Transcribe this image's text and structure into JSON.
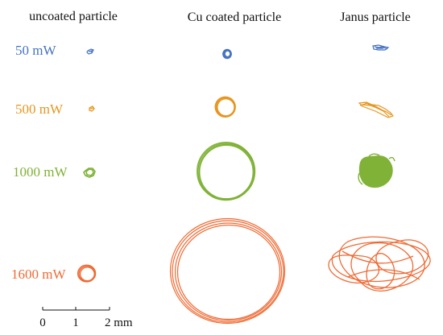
{
  "columns": [
    "uncoated particle",
    "Cu coated particle",
    "Janus particle"
  ],
  "rows": [
    {
      "label": "50 mW",
      "color": "#4472c4"
    },
    {
      "label": "500 mW",
      "color": "#e6961f"
    },
    {
      "label": "1000 mW",
      "color": "#7fb236"
    },
    {
      "label": "1600 mW",
      "color": "#ef6a34"
    }
  ],
  "scale_bar": {
    "ticks": [
      "0",
      "1",
      "2 mm"
    ]
  }
}
